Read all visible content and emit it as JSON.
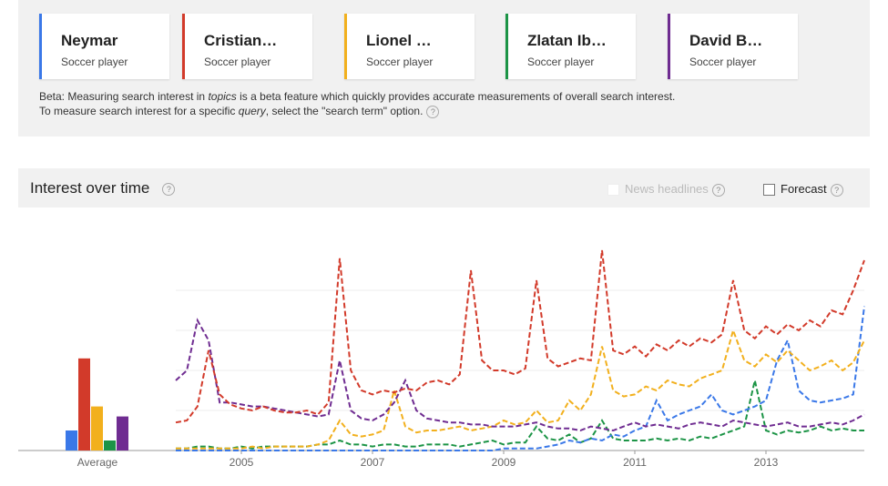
{
  "chart_data": {
    "type": "line",
    "series": [
      {
        "name": "Neymar",
        "subtitle": "Soccer player",
        "color": "#3a78e8",
        "values": [
          0,
          0,
          0,
          0,
          0,
          0,
          0,
          0,
          0,
          0,
          0,
          0,
          0,
          0,
          0,
          0,
          0,
          0,
          0,
          0,
          0,
          0,
          0,
          0,
          0,
          0,
          0,
          0,
          0,
          0,
          1,
          1,
          1,
          1,
          2,
          3,
          5,
          4,
          6,
          5,
          8,
          7,
          10,
          12,
          25,
          15,
          18,
          20,
          22,
          28,
          20,
          18,
          20,
          22,
          25,
          45,
          55,
          30,
          25,
          24,
          25,
          26,
          28,
          72
        ]
      },
      {
        "name": "Cristian…",
        "subtitle": "Soccer player",
        "color": "#d23a2a",
        "values": [
          14,
          15,
          22,
          50,
          28,
          23,
          21,
          20,
          22,
          20,
          19,
          19,
          20,
          18,
          24,
          96,
          40,
          30,
          28,
          30,
          29,
          31,
          30,
          34,
          35,
          33,
          38,
          90,
          45,
          40,
          40,
          38,
          41,
          85,
          46,
          42,
          44,
          46,
          45,
          100,
          50,
          48,
          52,
          47,
          53,
          50,
          55,
          52,
          56,
          54,
          58,
          85,
          60,
          56,
          62,
          58,
          63,
          60,
          65,
          62,
          70,
          68,
          80,
          95
        ]
      },
      {
        "name": "Lionel …",
        "subtitle": "Soccer player",
        "color": "#f2b01d",
        "values": [
          1,
          1,
          1,
          1,
          1,
          1,
          1,
          2,
          1,
          2,
          2,
          2,
          2,
          3,
          5,
          15,
          8,
          7,
          8,
          10,
          30,
          12,
          9,
          10,
          10,
          11,
          12,
          10,
          11,
          12,
          15,
          13,
          14,
          20,
          14,
          15,
          25,
          20,
          28,
          52,
          30,
          27,
          28,
          32,
          30,
          35,
          33,
          32,
          36,
          38,
          40,
          60,
          45,
          42,
          48,
          44,
          50,
          45,
          40,
          42,
          45,
          40,
          44,
          55
        ]
      },
      {
        "name": "Zlatan Ib…",
        "subtitle": "Soccer player",
        "color": "#1c9446",
        "values": [
          1,
          1,
          2,
          2,
          1,
          1,
          2,
          1,
          2,
          2,
          2,
          2,
          2,
          3,
          3,
          5,
          3,
          3,
          2,
          3,
          3,
          2,
          2,
          3,
          3,
          3,
          2,
          3,
          4,
          5,
          3,
          4,
          4,
          12,
          6,
          5,
          8,
          4,
          6,
          15,
          6,
          5,
          5,
          5,
          6,
          5,
          6,
          5,
          7,
          6,
          8,
          10,
          12,
          35,
          10,
          8,
          10,
          9,
          10,
          12,
          10,
          11,
          10,
          10
        ]
      },
      {
        "name": "David B…",
        "subtitle": "Soccer player",
        "color": "#6f2c91",
        "values": [
          35,
          40,
          65,
          55,
          24,
          24,
          23,
          22,
          22,
          21,
          20,
          19,
          18,
          17,
          18,
          45,
          20,
          16,
          15,
          18,
          24,
          35,
          20,
          16,
          15,
          14,
          14,
          13,
          13,
          12,
          12,
          12,
          13,
          14,
          12,
          11,
          11,
          10,
          12,
          11,
          10,
          12,
          14,
          12,
          13,
          12,
          11,
          13,
          14,
          13,
          12,
          15,
          14,
          13,
          12,
          13,
          14,
          12,
          12,
          13,
          14,
          13,
          15,
          18
        ]
      }
    ],
    "x": [
      2004,
      2004.17,
      2004.33,
      2004.5,
      2004.67,
      2004.83,
      2005,
      2005.17,
      2005.33,
      2005.5,
      2005.67,
      2005.83,
      2006,
      2006.17,
      2006.33,
      2006.5,
      2006.67,
      2006.83,
      2007,
      2007.17,
      2007.33,
      2007.5,
      2007.67,
      2007.83,
      2008,
      2008.17,
      2008.33,
      2008.5,
      2008.67,
      2008.83,
      2009,
      2009.17,
      2009.33,
      2009.5,
      2009.67,
      2009.83,
      2010,
      2010.17,
      2010.33,
      2010.5,
      2010.67,
      2010.83,
      2011,
      2011.17,
      2011.33,
      2011.5,
      2011.67,
      2011.83,
      2012,
      2012.17,
      2012.33,
      2012.5,
      2012.67,
      2012.83,
      2013,
      2013.17,
      2013.33,
      2013.5,
      2013.67,
      2013.83,
      2014,
      2014.17,
      2014.33,
      2014.5
    ],
    "xlim": [
      2004,
      2014.5
    ],
    "xticks": [
      2005,
      2007,
      2009,
      2011,
      2013
    ],
    "ylim": [
      0,
      100
    ],
    "ygrid": [
      20,
      40,
      60,
      80
    ],
    "average": {
      "label": "Average",
      "values": [
        10,
        46,
        22,
        5,
        17
      ]
    },
    "beta_note": [
      "Beta: Measuring search interest in ",
      "topics",
      " is a beta feature which quickly provides accurate measurements of overall search interest. To measure search interest for a specific ",
      "query",
      ", select the \"search term\" option."
    ],
    "section_title": "Interest over time",
    "news_headlines": "News headlines",
    "forecast": "Forecast",
    "help_icon": "?"
  }
}
